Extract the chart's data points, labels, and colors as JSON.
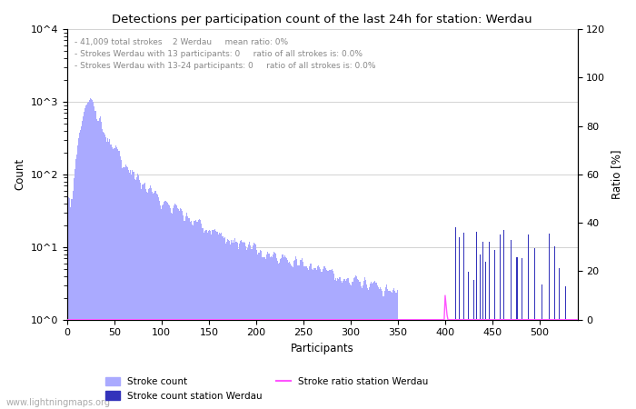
{
  "title": "Detections per participation count of the last 24h for station: Werdau",
  "xlabel": "Participants",
  "ylabel_left": "Count",
  "ylabel_right": "Ratio [%]",
  "annotation_lines": [
    "41,009 total strokes    2 Werdau     mean ratio: 0%",
    "Strokes Werdau with 13 participants: 0     ratio of all strokes is: 0.0%",
    "Strokes Werdau with 13-24 participants: 0     ratio of all strokes is: 0.0%"
  ],
  "watermark": "www.lightningmaps.org",
  "bar_color_light": "#aaaaff",
  "bar_color_dark": "#3333bb",
  "ratio_line_color": "#ff55ff",
  "xlim": [
    0,
    540
  ],
  "ylim_log": [
    1,
    10000
  ],
  "ylim_right": [
    0,
    120
  ],
  "xticks": [
    0,
    50,
    100,
    150,
    200,
    250,
    300,
    350,
    400,
    450,
    500
  ],
  "yticks_right": [
    0,
    20,
    40,
    60,
    80,
    100,
    120
  ],
  "legend_labels": [
    "Stroke count",
    "Stroke count station Werdau",
    "Stroke ratio station Werdau"
  ],
  "figsize": [
    7.0,
    4.5
  ],
  "dpi": 100
}
